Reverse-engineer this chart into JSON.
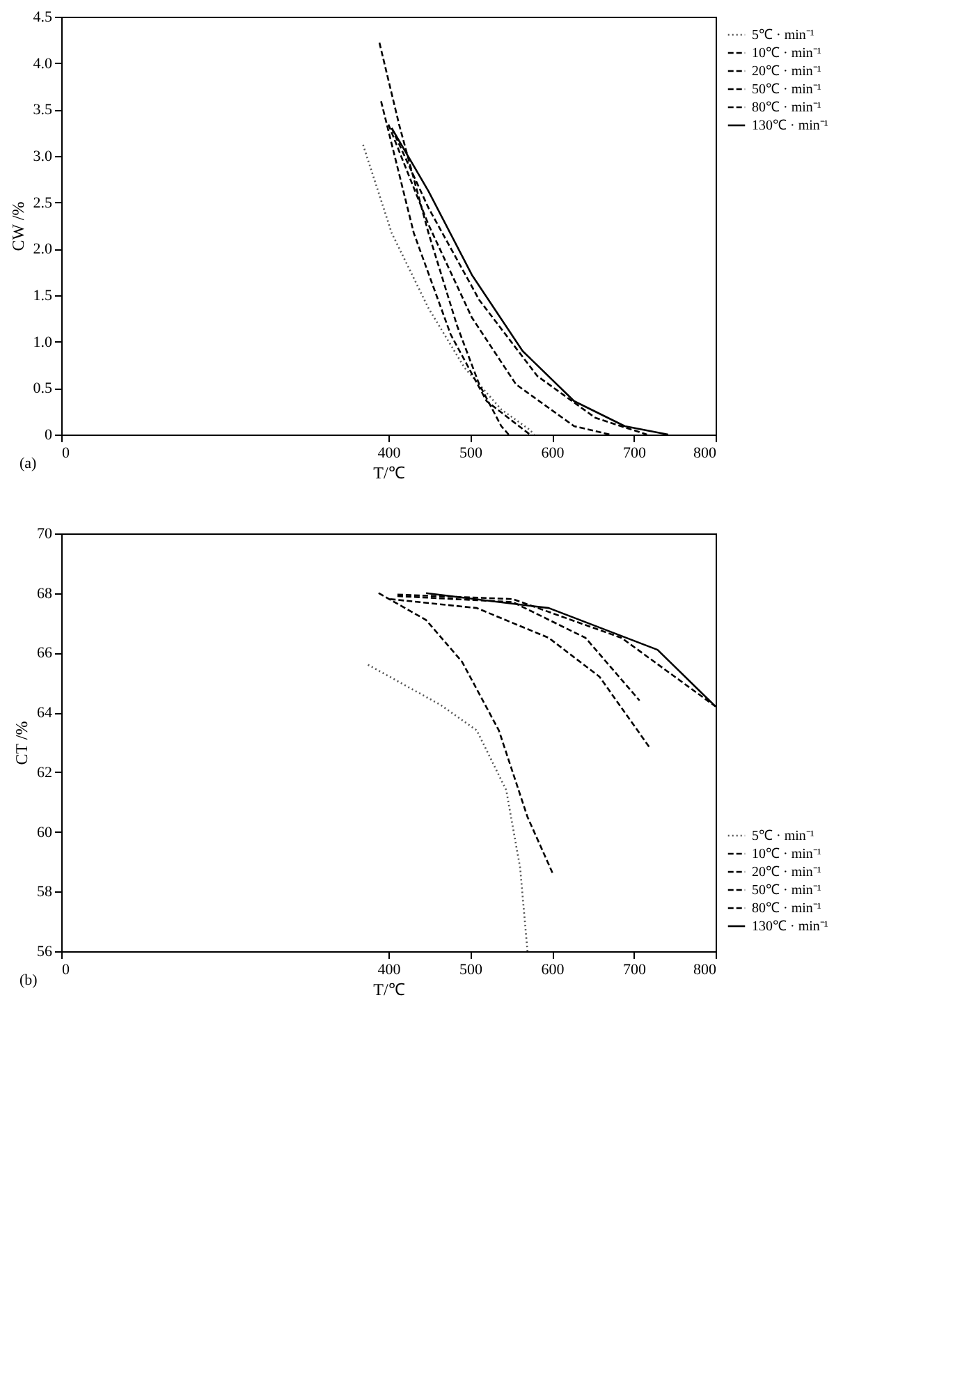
{
  "chart_data": [
    {
      "type": "line",
      "xlabel": "T/℃",
      "ylabel": "CW /%",
      "legend": "top right",
      "annotations": [
        "(a)"
      ],
      "xlim": [
        0,
        800
      ],
      "xticks": [
        0,
        400,
        500,
        600,
        700,
        800
      ],
      "ylim": [
        0,
        4.5
      ],
      "yticks": [
        0,
        0.5,
        {
          "value": 1,
          "label": "1.0"
        },
        1.5,
        {
          "value": 2,
          "label": "2.0"
        },
        2.5,
        {
          "value": 3,
          "label": "3.0"
        },
        3.5,
        {
          "value": 4,
          "label": "4.0"
        },
        4.5
      ],
      "series": [
        {
          "name": "5℃ · min⁻¹",
          "color": "#555555",
          "line_style": "dotted",
          "x": [
            369,
            404,
            449,
            493,
            538,
            573,
            578
          ],
          "values": [
            3.12,
            2.17,
            1.36,
            0.72,
            0.27,
            0.05,
            0
          ]
        },
        {
          "name": "10℃ · min⁻¹",
          "color": "#000000",
          "line_style": "dashed",
          "x": [
            389,
            413,
            449,
            484,
            511,
            538,
            547
          ],
          "values": [
            4.22,
            3.34,
            2.17,
            1.17,
            0.54,
            0.09,
            0
          ]
        },
        {
          "name": "20℃ · min⁻¹",
          "color": "#000000",
          "line_style": "dashed",
          "x": [
            391,
            431,
            476,
            520,
            573
          ],
          "values": [
            3.59,
            2.17,
            1.08,
            0.36,
            0
          ]
        },
        {
          "name": "50℃ · min⁻¹",
          "color": "#000000",
          "line_style": "dashed",
          "x": [
            400,
            449,
            502,
            556,
            627,
            671
          ],
          "values": [
            3.34,
            2.26,
            1.26,
            0.54,
            0.09,
            0
          ]
        },
        {
          "name": "80℃ · min⁻¹",
          "color": "#000000",
          "line_style": "dashed",
          "x": [
            404,
            449,
            511,
            582,
            653,
            716
          ],
          "values": [
            3.3,
            2.44,
            1.45,
            0.63,
            0.18,
            0
          ]
        },
        {
          "name": "130℃ · min⁻¹",
          "color": "#000000",
          "line_style": "solid",
          "x": [
            404,
            449,
            502,
            564,
            627,
            689,
            742
          ],
          "values": [
            3.3,
            2.62,
            1.72,
            0.9,
            0.36,
            0.09,
            0
          ]
        }
      ]
    },
    {
      "type": "line",
      "xlabel": "T/℃",
      "ylabel": "CT /%",
      "legend": "bottom right",
      "annotations": [
        "(b)"
      ],
      "xlim": [
        0,
        800
      ],
      "xticks": [
        0,
        400,
        500,
        600,
        700,
        800
      ],
      "ylim": [
        56,
        70
      ],
      "yticks": [
        56,
        58,
        60,
        62,
        64,
        66,
        68,
        70
      ],
      "series": [
        {
          "name": "5℃ · min⁻¹",
          "color": "#555555",
          "line_style": "dotted",
          "x": [
            375,
            464,
            508,
            544,
            561,
            570
          ],
          "values": [
            65.6,
            64.25,
            63.4,
            61.4,
            58.8,
            56
          ]
        },
        {
          "name": "10℃ · min⁻¹",
          "color": "#000000",
          "line_style": "dashed",
          "x": [
            388,
            446,
            490,
            535,
            570,
            601
          ],
          "values": [
            68.0,
            67.1,
            65.7,
            63.4,
            60.5,
            58.6
          ]
        },
        {
          "name": "20℃ · min⁻¹",
          "color": "#000000",
          "line_style": "dashed",
          "x": [
            402,
            508,
            596,
            658,
            720
          ],
          "values": [
            67.8,
            67.5,
            66.5,
            65.2,
            62.8
          ]
        },
        {
          "name": "50℃ · min⁻¹",
          "color": "#000000",
          "line_style": "dashed",
          "x": [
            411,
            552,
            641,
            707
          ],
          "values": [
            67.9,
            67.7,
            66.5,
            64.4
          ]
        },
        {
          "name": "80℃ · min⁻¹",
          "color": "#000000",
          "line_style": "dashed",
          "x": [
            411,
            552,
            685,
            800
          ],
          "values": [
            67.95,
            67.8,
            66.5,
            64.2
          ]
        },
        {
          "name": "130℃ · min⁻¹",
          "color": "#000000",
          "line_style": "solid",
          "x": [
            446,
            596,
            729,
            800
          ],
          "values": [
            68.0,
            67.5,
            66.1,
            64.2
          ]
        }
      ]
    }
  ]
}
